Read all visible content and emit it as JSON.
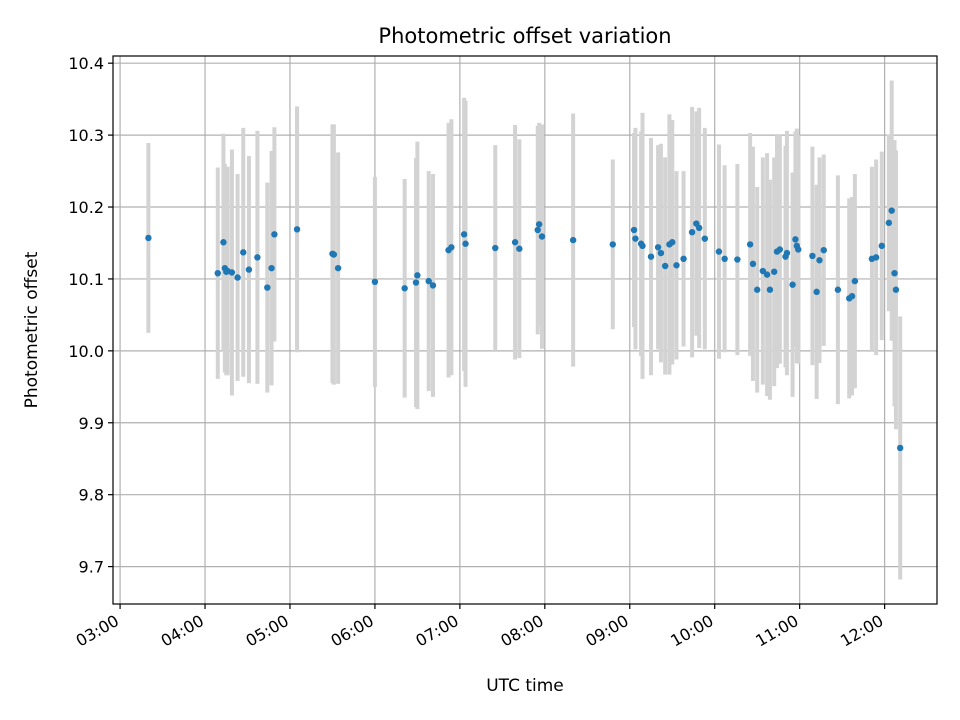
{
  "chart_data": {
    "type": "scatter",
    "title": "Photometric offset variation",
    "xlabel": "UTC time",
    "ylabel": "Photometric offset",
    "xlim": [
      "02:55",
      "12:37"
    ],
    "ylim": [
      9.648,
      10.41
    ],
    "xticks": [
      "03:00",
      "04:00",
      "05:00",
      "06:00",
      "07:00",
      "08:00",
      "09:00",
      "10:00",
      "11:00",
      "12:00"
    ],
    "yticks": [
      "9.7",
      "9.8",
      "9.9",
      "10.0",
      "10.1",
      "10.2",
      "10.3",
      "10.4"
    ],
    "grid": true,
    "colors": {
      "points": "#1f77b4",
      "errorbars": "#d3d3d3",
      "grid": "#b0b0b0"
    },
    "series": [
      {
        "x": [
          "03:20",
          "04:09",
          "04:13",
          "04:14",
          "04:15",
          "04:16",
          "04:19",
          "04:23",
          "04:27",
          "04:31",
          "04:37",
          "04:44",
          "04:47",
          "04:49",
          "05:05",
          "05:30",
          "05:31",
          "05:34",
          "06:00",
          "06:21",
          "06:29",
          "06:30",
          "06:38",
          "06:41",
          "06:52",
          "06:54",
          "07:03",
          "07:04",
          "07:25",
          "07:39",
          "07:42",
          "07:55",
          "07:56",
          "07:58",
          "08:20",
          "08:48",
          "09:03",
          "09:04",
          "09:08",
          "09:09",
          "09:15",
          "09:20",
          "09:22",
          "09:25",
          "09:28",
          "09:30",
          "09:33",
          "09:38",
          "09:44",
          "09:47",
          "09:49",
          "09:53",
          "10:03",
          "10:07",
          "10:16",
          "10:25",
          "10:27",
          "10:30",
          "10:34",
          "10:37",
          "10:39",
          "10:42",
          "10:44",
          "10:46",
          "10:50",
          "10:51",
          "10:55",
          "10:57",
          "10:58",
          "10:59",
          "11:09",
          "11:12",
          "11:14",
          "11:17",
          "11:27",
          "11:35",
          "11:37",
          "11:39",
          "11:51",
          "11:54",
          "11:58",
          "12:03",
          "12:05",
          "12:07",
          "12:08",
          "12:11"
        ],
        "y": [
          10.157,
          10.108,
          10.151,
          10.115,
          10.11,
          10.111,
          10.109,
          10.102,
          10.137,
          10.113,
          10.13,
          10.088,
          10.115,
          10.162,
          10.169,
          10.135,
          10.134,
          10.115,
          10.096,
          10.087,
          10.095,
          10.105,
          10.097,
          10.091,
          10.14,
          10.144,
          10.162,
          10.149,
          10.143,
          10.151,
          10.142,
          10.168,
          10.176,
          10.159,
          10.154,
          10.148,
          10.168,
          10.156,
          10.149,
          10.146,
          10.131,
          10.144,
          10.136,
          10.118,
          10.148,
          10.151,
          10.119,
          10.128,
          10.165,
          10.177,
          10.171,
          10.156,
          10.138,
          10.128,
          10.127,
          10.148,
          10.121,
          10.085,
          10.111,
          10.106,
          10.085,
          10.11,
          10.138,
          10.141,
          10.131,
          10.136,
          10.092,
          10.155,
          10.146,
          10.141,
          10.132,
          10.082,
          10.126,
          10.14,
          10.085,
          10.073,
          10.076,
          10.097,
          10.128,
          10.13,
          10.146,
          10.178,
          10.195,
          10.108,
          10.085,
          9.865
        ],
        "yerr": [
          0.132,
          0.147,
          0.151,
          0.145,
          0.144,
          0.145,
          0.171,
          0.144,
          0.173,
          0.158,
          0.176,
          0.146,
          0.163,
          0.149,
          0.171,
          0.18,
          0.181,
          0.161,
          0.146,
          0.152,
          0.173,
          0.186,
          0.153,
          0.155,
          0.177,
          0.178,
          0.19,
          0.199,
          0.143,
          0.163,
          0.152,
          0.145,
          0.141,
          0.156,
          0.176,
          0.118,
          0.135,
          0.154,
          0.156,
          0.185,
          0.165,
          0.142,
          0.152,
          0.151,
          0.181,
          0.17,
          0.131,
          0.122,
          0.174,
          0.156,
          0.167,
          0.154,
          0.149,
          0.13,
          0.133,
          0.155,
          0.163,
          0.143,
          0.158,
          0.169,
          0.153,
          0.159,
          0.162,
          0.159,
          0.154,
          0.17,
          0.156,
          0.15,
          0.163,
          0.159,
          0.152,
          0.149,
          0.143,
          0.133,
          0.159,
          0.139,
          0.138,
          0.149,
          0.128,
          0.136,
          0.131,
          0.123,
          0.181,
          0.185,
          0.194,
          0.183
        ]
      }
    ]
  }
}
